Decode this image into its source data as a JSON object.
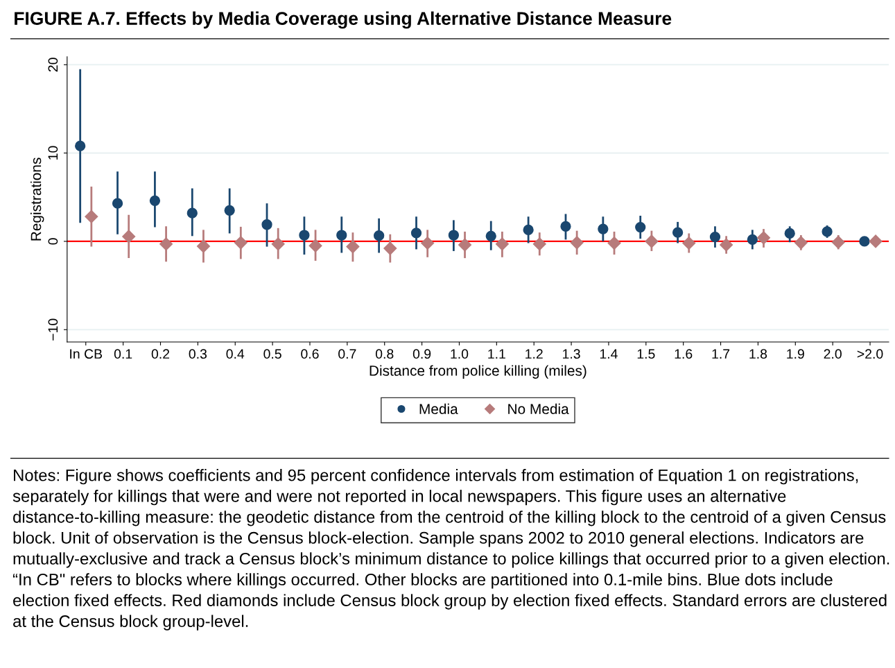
{
  "chart_data": {
    "type": "scatter",
    "title": "FIGURE A.7. Effects by Media Coverage using Alternative Distance Measure",
    "xlabel": "Distance from police killing (miles)",
    "ylabel": "Registrations",
    "categories": [
      "In CB",
      "0.1",
      "0.2",
      "0.3",
      "0.4",
      "0.5",
      "0.6",
      "0.7",
      "0.8",
      "0.9",
      "1.0",
      "1.1",
      "1.2",
      "1.3",
      "1.4",
      "1.5",
      "1.6",
      "1.7",
      "1.8",
      "1.9",
      "2.0",
      ">2.0"
    ],
    "series": [
      {
        "name": "Media",
        "color": "#1a476f",
        "marker": "circle",
        "values": [
          10.8,
          4.3,
          4.6,
          3.2,
          3.5,
          1.9,
          0.7,
          0.7,
          0.65,
          0.95,
          0.7,
          0.6,
          1.3,
          1.7,
          1.4,
          1.6,
          1.0,
          0.5,
          0.2,
          0.9,
          1.1,
          0
        ],
        "errors": [
          [
            2.1,
            19.5
          ],
          [
            0.8,
            7.9
          ],
          [
            1.6,
            7.9
          ],
          [
            0.6,
            6.0
          ],
          [
            0.9,
            6.0
          ],
          [
            -0.6,
            4.3
          ],
          [
            -1.5,
            2.8
          ],
          [
            -1.3,
            2.8
          ],
          [
            -1.3,
            2.6
          ],
          [
            -0.9,
            2.8
          ],
          [
            -1.1,
            2.4
          ],
          [
            -1.0,
            2.3
          ],
          [
            -0.2,
            2.8
          ],
          [
            0.2,
            3.1
          ],
          [
            0.0,
            2.8
          ],
          [
            0.3,
            2.9
          ],
          [
            -0.2,
            2.2
          ],
          [
            -0.7,
            1.7
          ],
          [
            -0.9,
            1.3
          ],
          [
            -0.1,
            1.7
          ],
          [
            0.4,
            1.8
          ],
          null
        ]
      },
      {
        "name": "No Media",
        "color": "#b77b7b",
        "marker": "diamond",
        "values": [
          2.8,
          0.55,
          -0.3,
          -0.55,
          -0.15,
          -0.3,
          -0.5,
          -0.6,
          -0.8,
          -0.2,
          -0.4,
          -0.3,
          -0.3,
          -0.15,
          -0.2,
          0.0,
          -0.2,
          -0.4,
          0.4,
          -0.15,
          -0.1,
          0
        ],
        "errors": [
          [
            -0.6,
            6.2
          ],
          [
            -1.9,
            3.0
          ],
          [
            -2.3,
            1.7
          ],
          [
            -2.4,
            1.3
          ],
          [
            -2.0,
            1.65
          ],
          [
            -2.0,
            1.5
          ],
          [
            -2.2,
            1.3
          ],
          [
            -2.3,
            1.0
          ],
          [
            -2.4,
            0.8
          ],
          [
            -1.8,
            1.3
          ],
          [
            -1.9,
            1.1
          ],
          [
            -1.8,
            1.1
          ],
          [
            -1.6,
            1.0
          ],
          [
            -1.5,
            1.2
          ],
          [
            -1.5,
            1.1
          ],
          [
            -1.1,
            1.2
          ],
          [
            -1.3,
            0.9
          ],
          [
            -1.4,
            0.6
          ],
          [
            -0.7,
            1.4
          ],
          [
            -1.0,
            0.7
          ],
          [
            -0.9,
            0.7
          ],
          null
        ]
      }
    ],
    "ylim": [
      -11.4,
      20.9
    ],
    "yticks": [
      {
        "value": -10,
        "label": "−10"
      },
      0,
      10,
      20
    ],
    "ref_lines": [
      {
        "axis": "y",
        "value": 0,
        "color": "#ff0000",
        "line_style": "solid"
      }
    ],
    "grid": "y",
    "legend": "bottom",
    "annotations": [
      "Notes: Figure shows coefficients and 95 percent confidence intervals from estimation of Equation 1 on registrations, separately for killings that were and were not reported in local newspapers. This figure uses an alternative distance-to-killing measure: the geodetic distance from the centroid of the killing block to the centroid of a given Census block. Unit of observation is the Census block-election. Sample spans 2002 to 2010 general elections. Indicators are mutually-exclusive and track a Census block’s minimum distance to police killings that occurred prior to a given election. “In CB\" refers to blocks where killings occurred. Other blocks are partitioned into 0.1-mile bins. Blue dots include election fixed effects. Red diamonds include Census block group by election fixed effects. Standard errors are clustered at the Census block group-level."
    ]
  }
}
